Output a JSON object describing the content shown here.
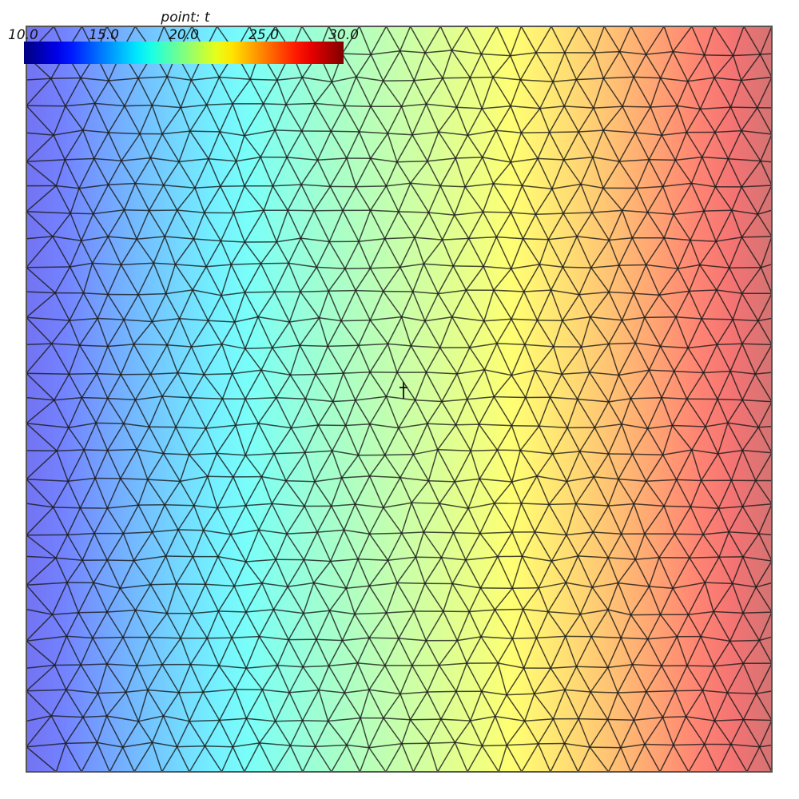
{
  "chart_data": {
    "type": "heatmap",
    "title": "",
    "field": "point: t",
    "colormap": "jet",
    "range": [
      10.0,
      30.0
    ],
    "ticks": [
      "10.0",
      "15.0",
      "20.0",
      "25.0",
      "30.0"
    ],
    "colorbar_placement": "top-left",
    "gradient": {
      "direction": "horizontal",
      "left_value": 12.0,
      "right_value": 29.0,
      "profile": "roughly linear across domain, steeper near mid-line"
    },
    "mesh": {
      "element_type": "triangle",
      "rows": 28,
      "cols": 27,
      "edge_color": "#1a1a1a",
      "field_opacity": 0.55
    },
    "colors": {
      "blue": "#0000ff",
      "cyan": "#00ffff",
      "green": "#00ff00",
      "yellow": "#ffff00",
      "red": "#ff0000"
    }
  }
}
